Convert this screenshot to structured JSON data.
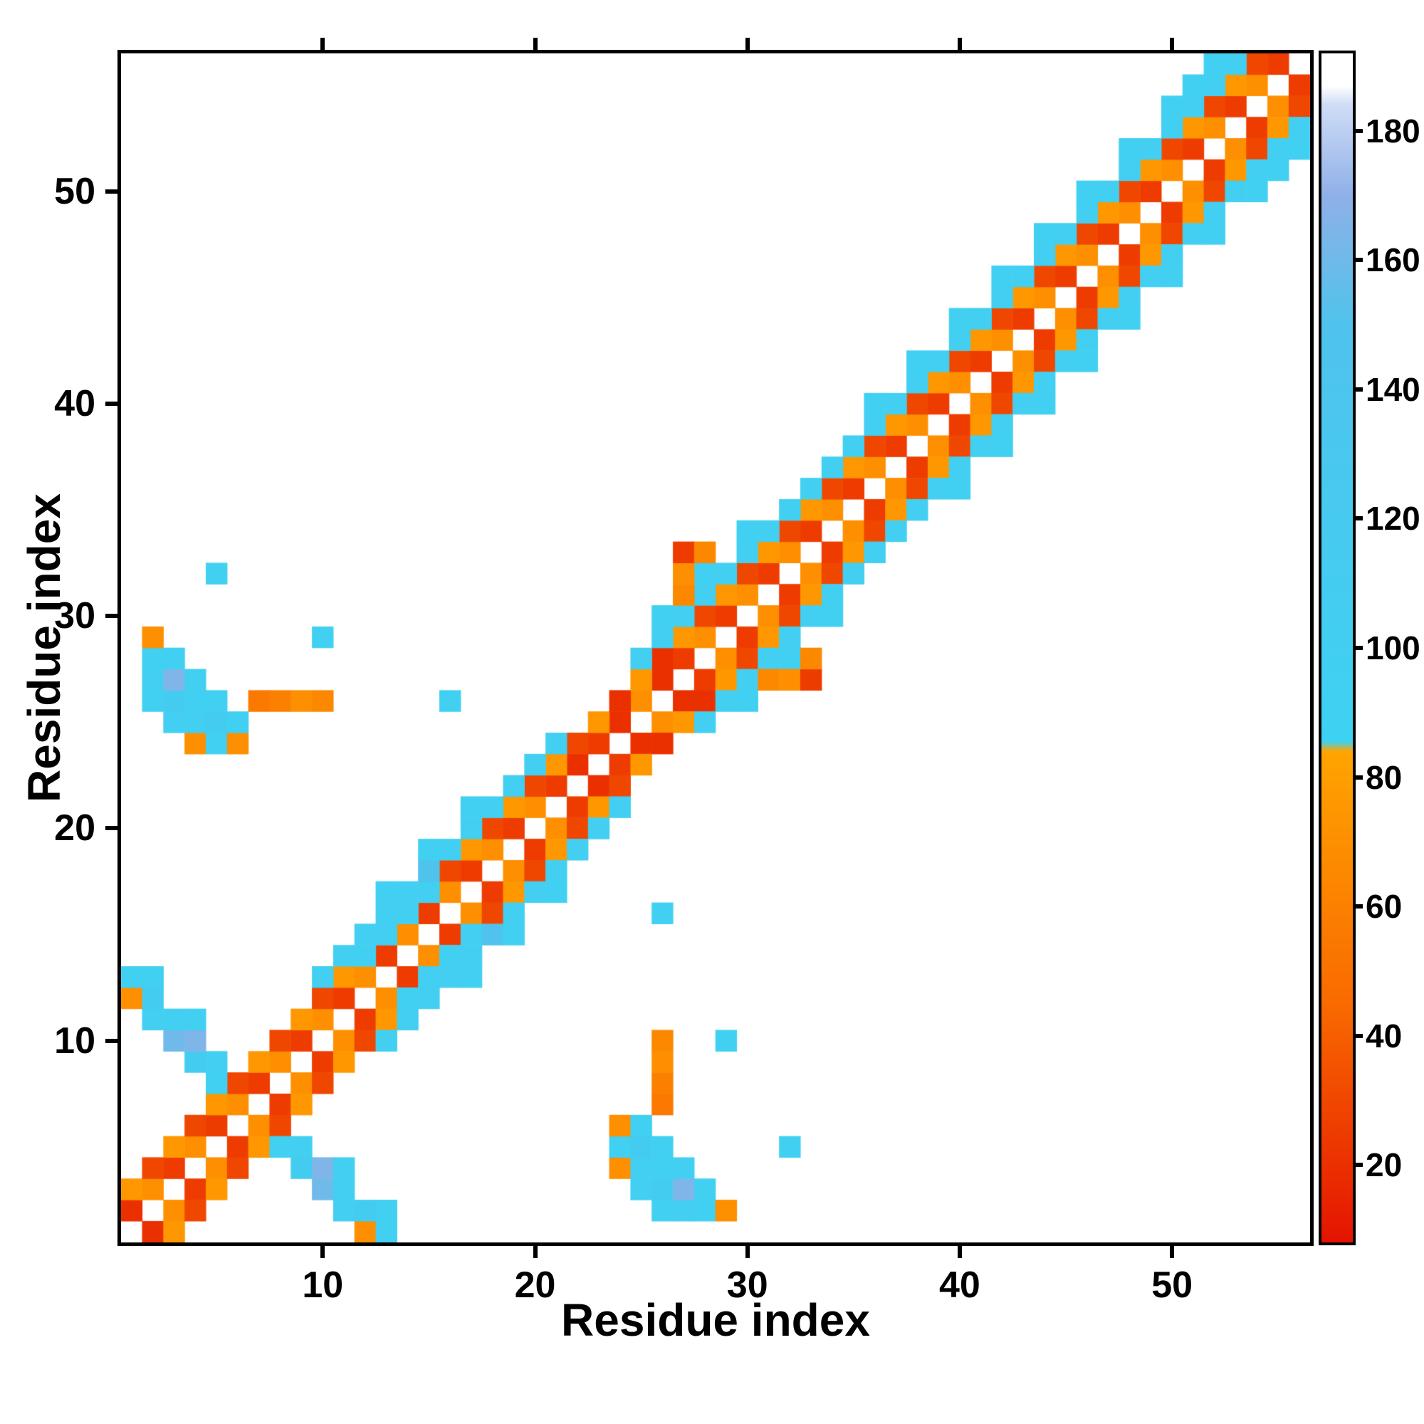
{
  "chart_data": {
    "type": "heatmap",
    "title": "",
    "xlabel": "Residue index",
    "ylabel": "Residue index",
    "x_ticks": [
      10,
      20,
      30,
      40,
      50
    ],
    "y_ticks": [
      10,
      20,
      30,
      40,
      50
    ],
    "xlim": [
      0.5,
      56.5
    ],
    "ylim": [
      0.5,
      56.5
    ],
    "n": 56,
    "grid": false,
    "symmetric": true,
    "background_value_color": "#ffffff",
    "colorbar": {
      "position": "right",
      "ticks": [
        20,
        40,
        60,
        80,
        100,
        120,
        140,
        160,
        180
      ],
      "range": [
        8,
        192
      ]
    },
    "colormap_stops": [
      [
        8,
        "#e41400"
      ],
      [
        45,
        "#f96a00"
      ],
      [
        84,
        "#ffa400"
      ],
      [
        85.5,
        "#3ed2f2"
      ],
      [
        150,
        "#4fc3ec"
      ],
      [
        170,
        "#8fb0e8"
      ],
      [
        184,
        "#cfdcf6"
      ],
      [
        187,
        "#ffffff"
      ],
      [
        192,
        "#ffffff"
      ]
    ],
    "cells": [
      [
        1,
        2,
        20
      ],
      [
        2,
        3,
        70
      ],
      [
        3,
        4,
        25
      ],
      [
        4,
        5,
        70
      ],
      [
        5,
        6,
        25
      ],
      [
        6,
        7,
        70
      ],
      [
        7,
        8,
        25
      ],
      [
        8,
        9,
        70
      ],
      [
        9,
        10,
        25
      ],
      [
        10,
        11,
        70
      ],
      [
        11,
        12,
        25
      ],
      [
        12,
        13,
        70
      ],
      [
        13,
        14,
        25
      ],
      [
        14,
        15,
        70
      ],
      [
        15,
        16,
        25
      ],
      [
        16,
        17,
        70
      ],
      [
        17,
        18,
        25
      ],
      [
        18,
        19,
        70
      ],
      [
        19,
        20,
        25
      ],
      [
        20,
        21,
        70
      ],
      [
        21,
        22,
        25
      ],
      [
        22,
        23,
        20
      ],
      [
        23,
        24,
        25
      ],
      [
        24,
        25,
        20
      ],
      [
        25,
        26,
        70
      ],
      [
        26,
        27,
        20
      ],
      [
        27,
        28,
        25
      ],
      [
        28,
        29,
        70
      ],
      [
        29,
        30,
        25
      ],
      [
        30,
        31,
        70
      ],
      [
        31,
        32,
        25
      ],
      [
        32,
        33,
        70
      ],
      [
        33,
        34,
        25
      ],
      [
        34,
        35,
        70
      ],
      [
        35,
        36,
        25
      ],
      [
        36,
        37,
        70
      ],
      [
        37,
        38,
        25
      ],
      [
        38,
        39,
        70
      ],
      [
        39,
        40,
        25
      ],
      [
        40,
        41,
        70
      ],
      [
        41,
        42,
        25
      ],
      [
        42,
        43,
        70
      ],
      [
        43,
        44,
        25
      ],
      [
        44,
        45,
        70
      ],
      [
        45,
        46,
        25
      ],
      [
        46,
        47,
        70
      ],
      [
        47,
        48,
        25
      ],
      [
        48,
        49,
        70
      ],
      [
        49,
        50,
        25
      ],
      [
        50,
        51,
        70
      ],
      [
        51,
        52,
        25
      ],
      [
        52,
        53,
        70
      ],
      [
        53,
        54,
        25
      ],
      [
        54,
        55,
        70
      ],
      [
        55,
        56,
        25
      ],
      [
        1,
        3,
        75
      ],
      [
        2,
        4,
        30
      ],
      [
        3,
        5,
        75
      ],
      [
        4,
        6,
        30
      ],
      [
        5,
        7,
        75
      ],
      [
        6,
        8,
        30
      ],
      [
        7,
        9,
        75
      ],
      [
        8,
        10,
        30
      ],
      [
        9,
        11,
        75
      ],
      [
        10,
        12,
        30
      ],
      [
        11,
        13,
        75
      ],
      [
        12,
        14,
        95
      ],
      [
        13,
        15,
        100
      ],
      [
        14,
        16,
        95
      ],
      [
        15,
        17,
        100
      ],
      [
        16,
        18,
        30
      ],
      [
        17,
        19,
        75
      ],
      [
        18,
        20,
        30
      ],
      [
        19,
        21,
        75
      ],
      [
        20,
        22,
        30
      ],
      [
        21,
        23,
        75
      ],
      [
        22,
        24,
        30
      ],
      [
        23,
        25,
        75
      ],
      [
        24,
        26,
        20
      ],
      [
        25,
        27,
        75
      ],
      [
        26,
        28,
        20
      ],
      [
        27,
        29,
        75
      ],
      [
        28,
        30,
        30
      ],
      [
        29,
        31,
        75
      ],
      [
        30,
        32,
        30
      ],
      [
        31,
        33,
        75
      ],
      [
        32,
        34,
        30
      ],
      [
        33,
        35,
        75
      ],
      [
        34,
        36,
        30
      ],
      [
        35,
        37,
        75
      ],
      [
        36,
        38,
        30
      ],
      [
        37,
        39,
        75
      ],
      [
        38,
        40,
        30
      ],
      [
        39,
        41,
        75
      ],
      [
        40,
        42,
        30
      ],
      [
        41,
        43,
        75
      ],
      [
        42,
        44,
        30
      ],
      [
        43,
        45,
        75
      ],
      [
        44,
        46,
        30
      ],
      [
        45,
        47,
        75
      ],
      [
        46,
        48,
        30
      ],
      [
        47,
        49,
        75
      ],
      [
        48,
        50,
        30
      ],
      [
        49,
        51,
        75
      ],
      [
        50,
        52,
        30
      ],
      [
        51,
        53,
        75
      ],
      [
        52,
        54,
        30
      ],
      [
        53,
        55,
        75
      ],
      [
        54,
        56,
        30
      ],
      [
        10,
        13,
        100
      ],
      [
        11,
        14,
        100
      ],
      [
        12,
        15,
        100
      ],
      [
        13,
        16,
        100
      ],
      [
        14,
        17,
        100
      ],
      [
        15,
        18,
        150
      ],
      [
        16,
        19,
        100
      ],
      [
        17,
        20,
        100
      ],
      [
        18,
        21,
        100
      ],
      [
        19,
        22,
        100
      ],
      [
        20,
        23,
        100
      ],
      [
        21,
        24,
        100
      ],
      [
        25,
        28,
        100
      ],
      [
        26,
        29,
        100
      ],
      [
        27,
        30,
        100
      ],
      [
        28,
        31,
        100
      ],
      [
        29,
        32,
        100
      ],
      [
        30,
        33,
        100
      ],
      [
        31,
        34,
        100
      ],
      [
        32,
        35,
        100
      ],
      [
        33,
        36,
        100
      ],
      [
        34,
        37,
        100
      ],
      [
        35,
        38,
        100
      ],
      [
        36,
        39,
        100
      ],
      [
        37,
        40,
        100
      ],
      [
        38,
        41,
        100
      ],
      [
        39,
        42,
        100
      ],
      [
        40,
        43,
        100
      ],
      [
        41,
        44,
        100
      ],
      [
        42,
        45,
        100
      ],
      [
        43,
        46,
        100
      ],
      [
        44,
        47,
        100
      ],
      [
        45,
        48,
        100
      ],
      [
        46,
        49,
        100
      ],
      [
        47,
        50,
        100
      ],
      [
        48,
        51,
        100
      ],
      [
        49,
        52,
        100
      ],
      [
        50,
        53,
        100
      ],
      [
        51,
        54,
        100
      ],
      [
        52,
        55,
        100
      ],
      [
        53,
        56,
        100
      ],
      [
        13,
        17,
        95
      ],
      [
        15,
        19,
        95
      ],
      [
        17,
        21,
        95
      ],
      [
        26,
        30,
        95
      ],
      [
        28,
        32,
        95
      ],
      [
        30,
        34,
        95
      ],
      [
        36,
        40,
        95
      ],
      [
        38,
        42,
        95
      ],
      [
        40,
        44,
        95
      ],
      [
        42,
        46,
        95
      ],
      [
        44,
        48,
        95
      ],
      [
        46,
        50,
        95
      ],
      [
        48,
        52,
        95
      ],
      [
        50,
        54,
        95
      ],
      [
        51,
        55,
        95
      ],
      [
        52,
        56,
        95
      ],
      [
        1,
        12,
        70
      ],
      [
        1,
        13,
        95
      ],
      [
        2,
        11,
        100
      ],
      [
        2,
        12,
        110
      ],
      [
        2,
        13,
        95
      ],
      [
        3,
        10,
        160
      ],
      [
        3,
        11,
        100
      ],
      [
        4,
        9,
        110
      ],
      [
        4,
        10,
        165
      ],
      [
        4,
        11,
        95
      ],
      [
        5,
        8,
        95
      ],
      [
        5,
        9,
        100
      ],
      [
        2,
        26,
        95
      ],
      [
        2,
        27,
        100
      ],
      [
        2,
        28,
        95
      ],
      [
        2,
        29,
        70
      ],
      [
        3,
        25,
        100
      ],
      [
        3,
        26,
        110
      ],
      [
        3,
        27,
        165
      ],
      [
        3,
        28,
        95
      ],
      [
        4,
        24,
        70
      ],
      [
        4,
        25,
        100
      ],
      [
        4,
        26,
        95
      ],
      [
        4,
        27,
        100
      ],
      [
        5,
        24,
        95
      ],
      [
        5,
        25,
        110
      ],
      [
        5,
        26,
        95
      ],
      [
        6,
        24,
        70
      ],
      [
        6,
        25,
        95
      ],
      [
        7,
        26,
        55
      ],
      [
        8,
        26,
        60
      ],
      [
        9,
        26,
        70
      ],
      [
        10,
        26,
        65
      ],
      [
        27,
        31,
        65
      ],
      [
        27,
        32,
        70
      ],
      [
        27,
        33,
        25
      ],
      [
        28,
        33,
        65
      ],
      [
        5,
        32,
        95
      ],
      [
        10,
        29,
        95
      ],
      [
        16,
        26,
        95
      ]
    ]
  }
}
